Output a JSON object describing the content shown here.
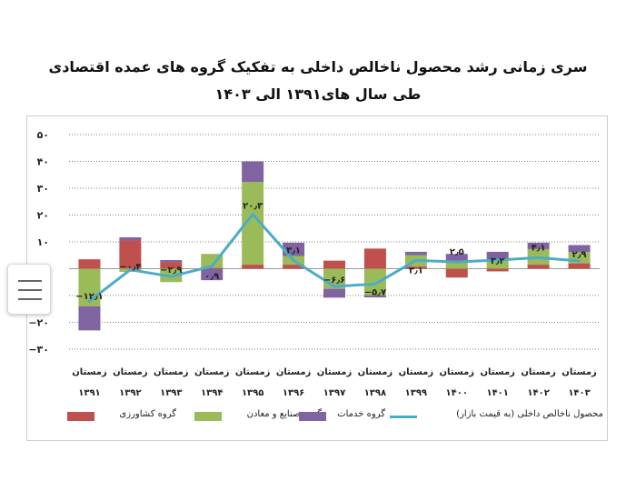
{
  "title_line1": "سری زمانی رشد محصول ناخالص داخلی به تفکیک گروه های عمده اقتصادی",
  "title_line2": "طی سال های۱۳۹۱ الی ۱۴۰۳",
  "legend": {
    "agri": "گروه کشاورزی",
    "industry": "گروه صنایع و معادن",
    "services": "گروه خدمات",
    "gdp": "محصول ناخالص داخلی (به قیمت بازار)"
  },
  "colors": {
    "agri": "#c0504d",
    "industry": "#9bbb59",
    "services": "#8064a2",
    "gdp": "#4bacc6"
  },
  "chart_data": {
    "type": "bar",
    "stacked": true,
    "ylim": [
      -30,
      50
    ],
    "yticks": [
      "۵۰",
      "۴۰",
      "۳۰",
      "۲۰",
      "۱۰",
      "۰",
      "−۱۰",
      "−۲۰",
      "−۳۰"
    ],
    "ytick_values": [
      50,
      40,
      30,
      20,
      10,
      0,
      -10,
      -20,
      -30
    ],
    "grid": true,
    "categories": [
      [
        "زمستان",
        "۱۳۹۱"
      ],
      [
        "زمستان",
        "۱۳۹۲"
      ],
      [
        "زمستان",
        "۱۳۹۳"
      ],
      [
        "زمستان",
        "۱۳۹۴"
      ],
      [
        "زمستان",
        "۱۳۹۵"
      ],
      [
        "زمستان",
        "۱۳۹۶"
      ],
      [
        "زمستان",
        "۱۳۹۷"
      ],
      [
        "زمستان",
        "۱۳۹۸"
      ],
      [
        "زمستان",
        "۱۳۹۹"
      ],
      [
        "زمستان",
        "۱۴۰۰"
      ],
      [
        "زمستان",
        "۱۴۰۱"
      ],
      [
        "زمستان",
        "۱۴۰۲"
      ],
      [
        "زمستان",
        "۱۴۰۳"
      ]
    ],
    "series": [
      {
        "name": "گروه کشاورزی",
        "key": "agri",
        "values": [
          3.5,
          10.5,
          2.5,
          0.3,
          1.5,
          1.5,
          3.0,
          7.5,
          0.8,
          -3.3,
          -1.0,
          1.5,
          2.0
        ]
      },
      {
        "name": "گروه صنایع و معادن",
        "key": "industry",
        "values": [
          -14.0,
          -1.2,
          -5.0,
          5.2,
          30.8,
          3.2,
          -7.5,
          -10.0,
          4.2,
          2.8,
          3.5,
          5.8,
          4.2
        ]
      },
      {
        "name": "گروه خدمات",
        "key": "services",
        "values": [
          -9.0,
          1.2,
          0.7,
          -4.3,
          7.7,
          5.0,
          -3.3,
          -0.7,
          1.3,
          2.7,
          2.8,
          2.4,
          2.6
        ]
      }
    ],
    "line": {
      "name": "محصول ناخالص داخلی (به قیمت بازار)",
      "key": "gdp",
      "values": [
        -12.1,
        -0.4,
        -2.9,
        0.9,
        20.3,
        3.1,
        -6.6,
        -5.7,
        3.1,
        2.5,
        3.2,
        4.1,
        2.9
      ]
    },
    "data_labels": [
      "−۱۲٫۱",
      "−۰٫۴",
      "−۲٫۹",
      "۰٫۹",
      "۲۰٫۳",
      "۳٫۱",
      "−۶٫۶",
      "−۵٫۷",
      "۳٫۱",
      "۲٫۵",
      "۳٫۲",
      "۴٫۱",
      "۲٫۹"
    ]
  }
}
